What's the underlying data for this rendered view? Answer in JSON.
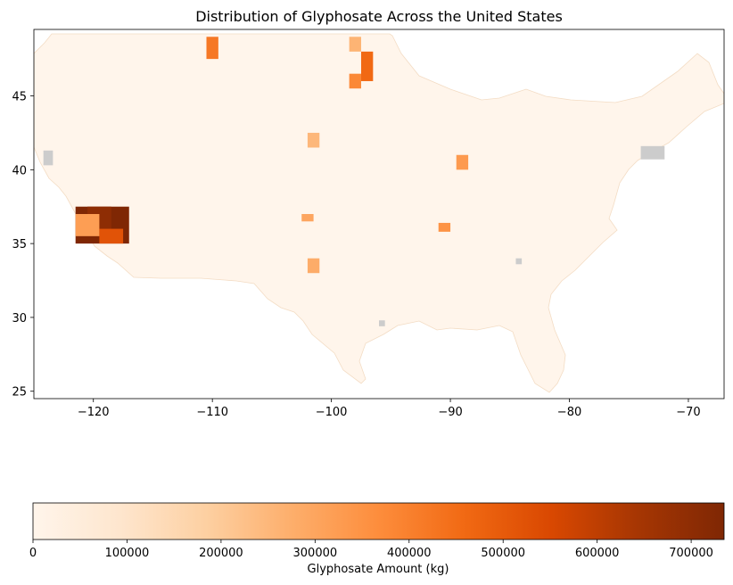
{
  "chart_data": {
    "type": "choropleth",
    "title": "Distribution of Glyphosate Across the United States",
    "xlabel": "",
    "ylabel": "",
    "xlim": [
      -125,
      -67
    ],
    "ylim": [
      24.5,
      49.5
    ],
    "x_ticks": [
      -120,
      -110,
      -100,
      -90,
      -80,
      -70
    ],
    "x_tick_labels": [
      "−120",
      "−110",
      "−100",
      "−90",
      "−80",
      "−70"
    ],
    "y_ticks": [
      25,
      30,
      35,
      40,
      45
    ],
    "y_tick_labels": [
      "25",
      "30",
      "35",
      "40",
      "45"
    ],
    "colormap": "Oranges",
    "colormap_stops": [
      "#fff5eb",
      "#fee6ce",
      "#fdd0a2",
      "#fdae6b",
      "#fd8d3c",
      "#f16913",
      "#d94801",
      "#a63603",
      "#7f2704"
    ],
    "no_data_color": "#cccccc",
    "colorbar": {
      "label": "Glyphosate Amount (kg)",
      "range": [
        0,
        735000
      ],
      "ticks": [
        0,
        100000,
        200000,
        300000,
        400000,
        500000,
        600000,
        700000
      ],
      "tick_labels": [
        "0",
        "100000",
        "200000",
        "300000",
        "400000",
        "500000",
        "600000",
        "700000"
      ],
      "orientation": "horizontal"
    },
    "regions": [
      {
        "lon": [
          -121.5,
          -117
        ],
        "lat": [
          35,
          37.5
        ],
        "value": 735000
      },
      {
        "lon": [
          -120.5,
          -118.5
        ],
        "lat": [
          36,
          37.5
        ],
        "value": 700000
      },
      {
        "lon": [
          -119.5,
          -117.5
        ],
        "lat": [
          35,
          36
        ],
        "value": 520000
      },
      {
        "lon": [
          -121.5,
          -119.5
        ],
        "lat": [
          35.5,
          37
        ],
        "value": 320000
      },
      {
        "lon": [
          -110.5,
          -109.5
        ],
        "lat": [
          47.5,
          49
        ],
        "value": 420000
      },
      {
        "lon": [
          -97.5,
          -96.5
        ],
        "lat": [
          46,
          48
        ],
        "value": 460000
      },
      {
        "lon": [
          -98.5,
          -97.5
        ],
        "lat": [
          45.5,
          46.5
        ],
        "value": 380000
      },
      {
        "lon": [
          -89.5,
          -88.5
        ],
        "lat": [
          40,
          41
        ],
        "value": 330000
      },
      {
        "lon": [
          -91,
          -90
        ],
        "lat": [
          35.8,
          36.4
        ],
        "value": 350000
      },
      {
        "lon": [
          -102.5,
          -101.5
        ],
        "lat": [
          36.5,
          37
        ],
        "value": 300000
      },
      {
        "lon": [
          -102,
          -101
        ],
        "lat": [
          33,
          34
        ],
        "value": 280000
      },
      {
        "lon": [
          -102,
          -101
        ],
        "lat": [
          41.5,
          42.5
        ],
        "value": 250000
      },
      {
        "lon": [
          -98.5,
          -97.5
        ],
        "lat": [
          48,
          49
        ],
        "value": 260000
      }
    ],
    "no_data_regions": [
      {
        "lon": [
          -74,
          -72
        ],
        "lat": [
          40.7,
          41.6
        ]
      },
      {
        "lon": [
          -124.2,
          -123.4
        ],
        "lat": [
          40.3,
          41.3
        ]
      },
      {
        "lon": [
          -96,
          -95.5
        ],
        "lat": [
          29.4,
          29.8
        ]
      },
      {
        "lon": [
          -84.5,
          -84
        ],
        "lat": [
          33.6,
          34
        ]
      }
    ]
  }
}
